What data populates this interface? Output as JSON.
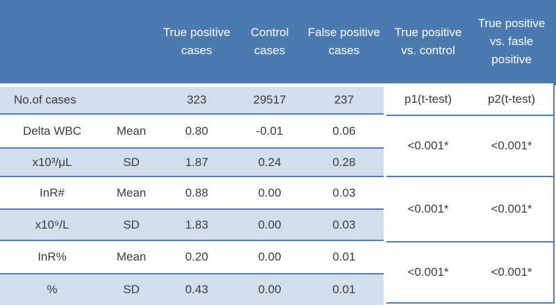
{
  "colors": {
    "header-bg": "#4b7ab1",
    "row-alt-bg": "#d2deeb",
    "line": "#4e7cb8",
    "text": "#3b3b3b",
    "header-text": "#ffffff"
  },
  "header": {
    "true_positive": "True positive cases",
    "control": "Control cases",
    "false_positive": "False positive cases",
    "tp_vs_control": "True positive vs. control",
    "tp_vs_false": "True positive vs. fasle positive"
  },
  "cases_row": {
    "label": "No.of cases",
    "true_positive": "323",
    "control": "29517",
    "false_positive": "237",
    "p1": "p1(t-test)",
    "p2": "p2(t-test)"
  },
  "groups": [
    {
      "mean": {
        "label": "Delta WBC",
        "stat": "Mean",
        "true_positive": "0.80",
        "control": "-0.01",
        "false_positive": "0.06"
      },
      "sd": {
        "label": "x10³/μL",
        "stat": "SD",
        "true_positive": "1.87",
        "control": "0.24",
        "false_positive": "0.28"
      },
      "p1": "<0.001*",
      "p2": "<0.001*"
    },
    {
      "mean": {
        "label": "InR#",
        "stat": "Mean",
        "true_positive": "0.88",
        "control": "0.00",
        "false_positive": "0.03"
      },
      "sd": {
        "label": "x10⁹/L",
        "stat": "SD",
        "true_positive": "1.83",
        "control": "0.00",
        "false_positive": "0.03"
      },
      "p1": "<0.001*",
      "p2": "<0.001*"
    },
    {
      "mean": {
        "label": "InR%",
        "stat": "Mean",
        "true_positive": "0.20",
        "control": "0.00",
        "false_positive": "0.01"
      },
      "sd": {
        "label": "%",
        "stat": "SD",
        "true_positive": "0.43",
        "control": "0.00",
        "false_positive": "0.01"
      },
      "p1": "<0.001*",
      "p2": "<0.001*"
    }
  ]
}
